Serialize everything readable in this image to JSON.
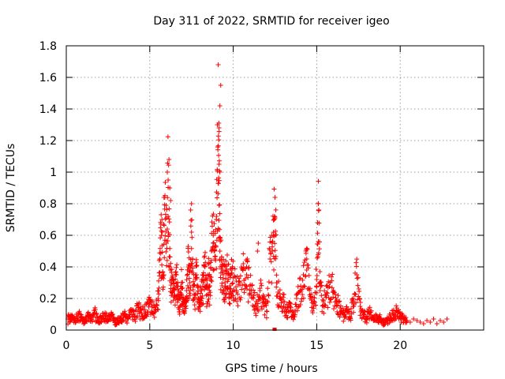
{
  "chart_data": {
    "type": "scatter",
    "title": "Day 311 of 2022, SRMTID for receiver igeo",
    "xlabel": "GPS time / hours",
    "ylabel": "SRMTID / TECUs",
    "xlim": [
      0,
      25
    ],
    "ylim": [
      0,
      1.8
    ],
    "xticks": [
      0,
      5,
      10,
      15,
      20
    ],
    "xtick_labels": [
      "0",
      "5",
      "10",
      "15",
      "20"
    ],
    "yticks": [
      0,
      0.2,
      0.4,
      0.6,
      0.8,
      1,
      1.2,
      1.4,
      1.6,
      1.8
    ],
    "ytick_labels": [
      "0",
      "0.2",
      "0.4",
      "0.6",
      "0.8",
      "1",
      "1.2",
      "1.4",
      "1.6",
      "1.8"
    ],
    "grid": true,
    "marker": "plus",
    "color": "#ff0000",
    "series": [
      {
        "name": "SRMTID",
        "x": [
          0.1,
          0.3,
          0.5,
          0.7,
          0.9,
          1.1,
          1.3,
          1.5,
          1.7,
          1.9,
          2.1,
          2.3,
          2.5,
          2.7,
          2.9,
          3.1,
          3.3,
          3.5,
          3.7,
          3.9,
          4.1,
          4.3,
          4.5,
          4.7,
          4.9,
          5.1,
          5.3,
          5.5,
          5.6,
          5.7,
          5.8,
          5.9,
          6.0,
          6.1,
          6.2,
          6.3,
          6.4,
          6.5,
          6.6,
          6.7,
          6.8,
          6.9,
          7.0,
          7.1,
          7.2,
          7.3,
          7.4,
          7.5,
          7.6,
          7.7,
          7.8,
          7.9,
          8.0,
          8.1,
          8.2,
          8.3,
          8.4,
          8.5,
          8.6,
          8.7,
          8.8,
          8.9,
          9.0,
          9.1,
          9.15,
          9.2,
          9.3,
          9.4,
          9.5,
          9.6,
          9.7,
          9.8,
          9.9,
          10.0,
          10.2,
          10.4,
          10.6,
          10.8,
          11.0,
          11.2,
          11.4,
          11.6,
          11.8,
          12.0,
          12.2,
          12.4,
          12.5,
          12.6,
          12.8,
          13.0,
          13.2,
          13.4,
          13.6,
          13.8,
          14.0,
          14.2,
          14.4,
          14.6,
          14.8,
          15.0,
          15.1,
          15.2,
          15.4,
          15.6,
          15.8,
          16.0,
          16.2,
          16.4,
          16.6,
          16.8,
          17.0,
          17.2,
          17.4,
          17.6,
          17.8,
          18.0,
          18.2,
          18.4,
          18.6,
          18.8,
          19.0,
          19.2,
          19.4,
          19.6,
          19.8,
          20.0,
          20.2,
          20.4,
          20.6,
          20.8,
          21.0,
          21.2,
          21.4,
          21.6,
          21.8,
          22.0,
          22.2,
          22.4,
          22.6,
          22.8,
          6.05,
          6.15,
          6.25,
          5.75,
          5.85,
          9.05,
          9.1,
          9.2,
          9.25,
          12.3,
          12.35,
          14.35,
          14.4,
          15.05,
          15.1,
          7.5,
          7.45,
          6.2,
          6.1,
          9.15,
          9.2,
          12.45,
          11.5,
          11.45,
          10.8,
          10.85
        ],
        "y": [
          0.07,
          0.09,
          0.06,
          0.1,
          0.08,
          0.05,
          0.09,
          0.07,
          0.11,
          0.06,
          0.08,
          0.1,
          0.07,
          0.09,
          0.05,
          0.06,
          0.08,
          0.1,
          0.07,
          0.12,
          0.09,
          0.14,
          0.11,
          0.13,
          0.17,
          0.16,
          0.12,
          0.2,
          0.45,
          0.6,
          0.35,
          0.84,
          0.55,
          0.95,
          0.4,
          0.3,
          0.25,
          0.22,
          0.35,
          0.2,
          0.15,
          0.3,
          0.18,
          0.12,
          0.25,
          0.4,
          0.3,
          0.62,
          0.28,
          0.22,
          0.35,
          0.2,
          0.18,
          0.25,
          0.3,
          0.4,
          0.22,
          0.35,
          0.28,
          0.5,
          0.6,
          0.45,
          0.72,
          0.93,
          1.05,
          0.5,
          0.4,
          0.35,
          0.3,
          0.38,
          0.32,
          0.28,
          0.36,
          0.33,
          0.25,
          0.3,
          0.42,
          0.35,
          0.28,
          0.2,
          0.15,
          0.25,
          0.18,
          0.12,
          0.45,
          0.6,
          0.84,
          0.3,
          0.2,
          0.18,
          0.12,
          0.15,
          0.1,
          0.2,
          0.25,
          0.35,
          0.45,
          0.2,
          0.15,
          0.32,
          0.8,
          0.25,
          0.18,
          0.22,
          0.3,
          0.25,
          0.18,
          0.14,
          0.1,
          0.12,
          0.08,
          0.2,
          0.35,
          0.15,
          0.1,
          0.08,
          0.12,
          0.06,
          0.09,
          0.07,
          0.05,
          0.06,
          0.08,
          0.1,
          0.12,
          0.09,
          0.07,
          0.06,
          0.05,
          0.07,
          0.06,
          0.05,
          0.04,
          0.06,
          0.05,
          0.07,
          0.04,
          0.06,
          0.05,
          0.07,
          1.0,
          1.08,
          0.82,
          0.62,
          0.84,
          1.3,
          1.68,
          1.42,
          1.55,
          0.6,
          0.5,
          0.5,
          0.38,
          0.68,
          0.56,
          0.8,
          0.76,
          0.9,
          0.72,
          1.28,
          1.0,
          0.7,
          0.55,
          0.5,
          0.4,
          0.45
        ]
      }
    ],
    "zero_markers": {
      "x": [
        12.45,
        12.5
      ],
      "y": [
        0.0,
        0.0
      ]
    }
  }
}
